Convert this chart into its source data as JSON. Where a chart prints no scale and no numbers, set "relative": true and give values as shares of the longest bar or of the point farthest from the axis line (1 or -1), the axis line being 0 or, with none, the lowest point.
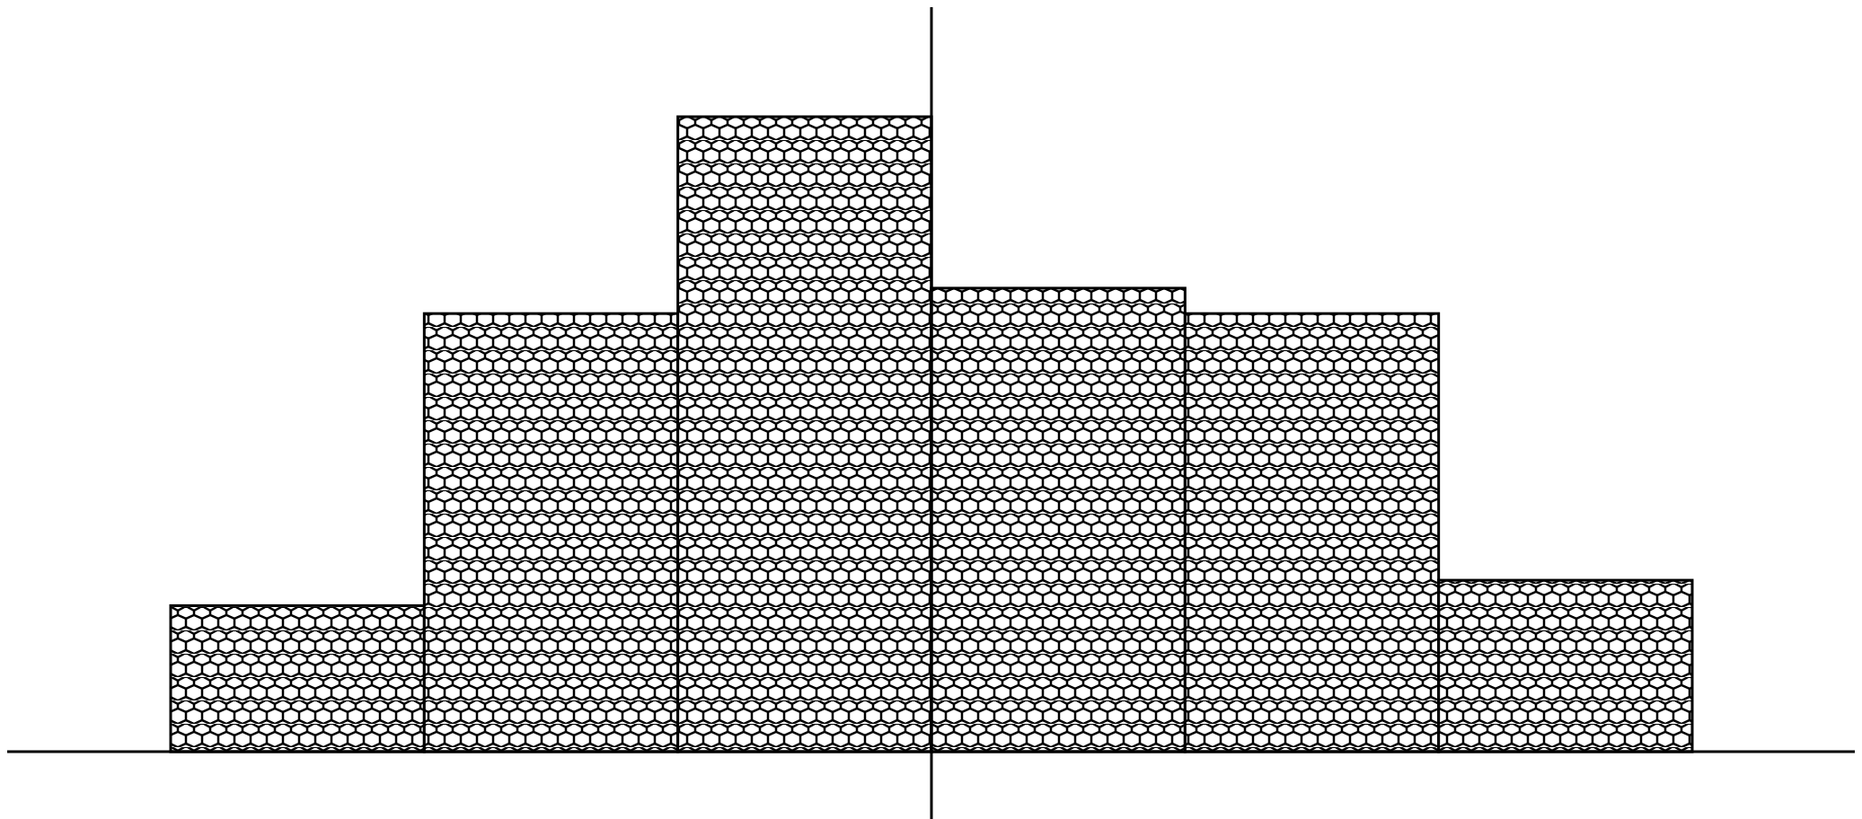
{
  "chart_data": {
    "type": "bar",
    "relative": true,
    "categories": [
      null,
      null,
      null,
      null,
      null,
      null
    ],
    "values": [
      0.23,
      0.69,
      1,
      0.73,
      0.69,
      0.27
    ],
    "color": "#000000"
  }
}
